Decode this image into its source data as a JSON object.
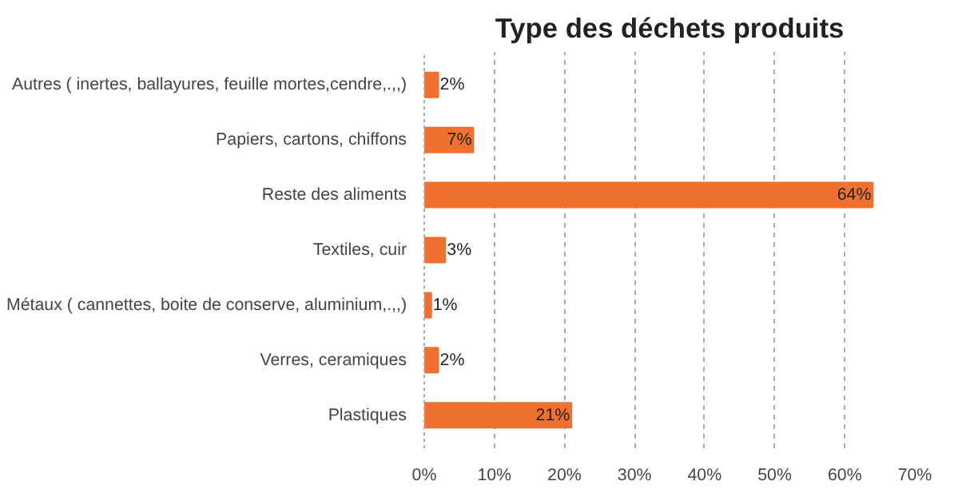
{
  "chart_data": {
    "type": "bar",
    "orientation": "horizontal",
    "title": "Type des déchets produits",
    "categories": [
      "Autres ( inertes, ballayures, feuille mortes,cendre,.,,)",
      "Papiers, cartons, chiffons",
      "Reste des aliments",
      "Textiles, cuir",
      "Métaux ( cannettes, boite de conserve, aluminium,.,,)",
      "Verres, ceramiques",
      "Plastiques"
    ],
    "values": [
      2,
      7,
      64,
      3,
      1,
      2,
      21
    ],
    "value_labels": [
      "2%",
      "7%",
      "64%",
      "3%",
      "1%",
      "2%",
      "21%"
    ],
    "color": "#f07030",
    "xlim": [
      0,
      70
    ],
    "xticks": [
      {
        "value": 0,
        "label": "0%"
      },
      {
        "value": 10,
        "label": "10%"
      },
      {
        "value": 20,
        "label": "20%"
      },
      {
        "value": 30,
        "label": "30%"
      },
      {
        "value": 40,
        "label": "40%"
      },
      {
        "value": 50,
        "label": "50%"
      },
      {
        "value": 60,
        "label": "60%"
      },
      {
        "value": 70,
        "label": "70%"
      }
    ],
    "grid": "x"
  }
}
